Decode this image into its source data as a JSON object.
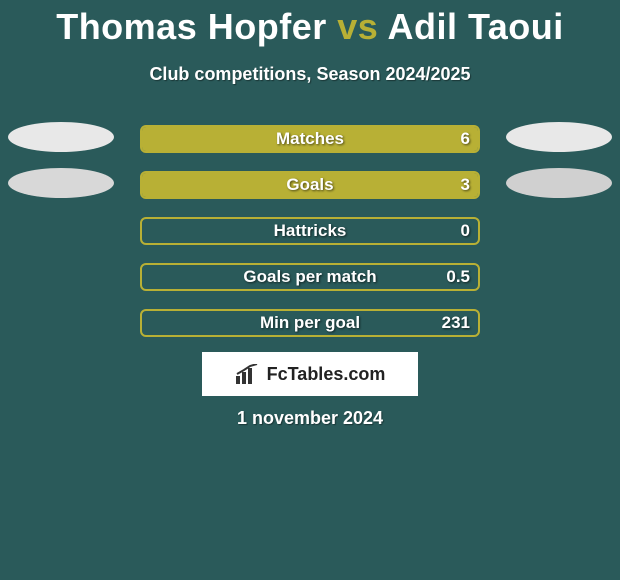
{
  "title": {
    "player1": "Thomas Hopfer",
    "vs": "vs",
    "player2": "Adil Taoui"
  },
  "subtitle": "Club competitions, Season 2024/2025",
  "date": "1 november 2024",
  "colors": {
    "background": "#2a5a5a",
    "bar_fill": "#b8b035",
    "bar_border": "#b8b035",
    "oval_light": "#e8e8e8",
    "oval_mid": "#d0d0d0",
    "text": "#ffffff"
  },
  "stats": [
    {
      "label": "Matches",
      "value": "6",
      "fill_pct": 100,
      "left_oval": "#e8e8e8",
      "right_oval": "#e8e8e8"
    },
    {
      "label": "Goals",
      "value": "3",
      "fill_pct": 100,
      "left_oval": "#d8d8d8",
      "right_oval": "#d0d0d0"
    },
    {
      "label": "Hattricks",
      "value": "0",
      "fill_pct": 0,
      "left_oval": null,
      "right_oval": null
    },
    {
      "label": "Goals per match",
      "value": "0.5",
      "fill_pct": 0,
      "left_oval": null,
      "right_oval": null
    },
    {
      "label": "Min per goal",
      "value": "231",
      "fill_pct": 0,
      "left_oval": null,
      "right_oval": null
    }
  ],
  "logo_text": "FcTables.com"
}
